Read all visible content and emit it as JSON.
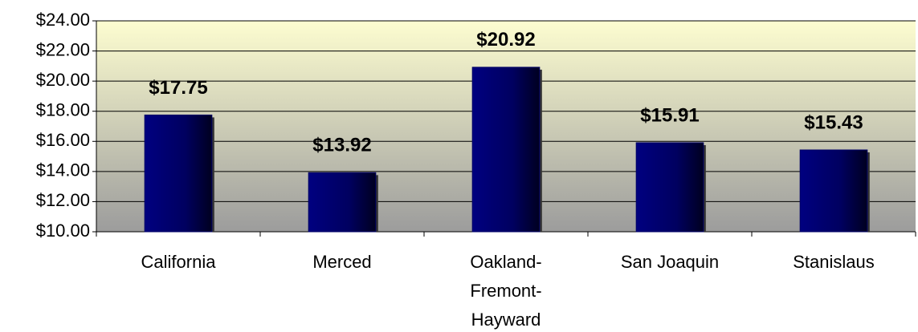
{
  "chart_data": {
    "type": "bar",
    "categories": [
      "California",
      "Merced",
      "Oakland-Fremont-Hayward",
      "San Joaquin",
      "Stanislaus"
    ],
    "values": [
      17.75,
      13.92,
      20.92,
      15.91,
      15.43
    ],
    "value_labels": [
      "$17.75",
      "$13.92",
      "$20.92",
      "$15.91",
      "$15.43"
    ],
    "color": "#000066",
    "ylim": [
      10,
      24
    ],
    "yticks": [
      {
        "value": 10,
        "label": "$10.00"
      },
      {
        "value": 12,
        "label": "$12.00"
      },
      {
        "value": 14,
        "label": "$14.00"
      },
      {
        "value": 16,
        "label": "$16.00"
      },
      {
        "value": 18,
        "label": "$18.00"
      },
      {
        "value": 20,
        "label": "$20.00"
      },
      {
        "value": 22,
        "label": "$22.00"
      },
      {
        "value": 24,
        "label": "$24.00"
      }
    ],
    "grid": true
  }
}
